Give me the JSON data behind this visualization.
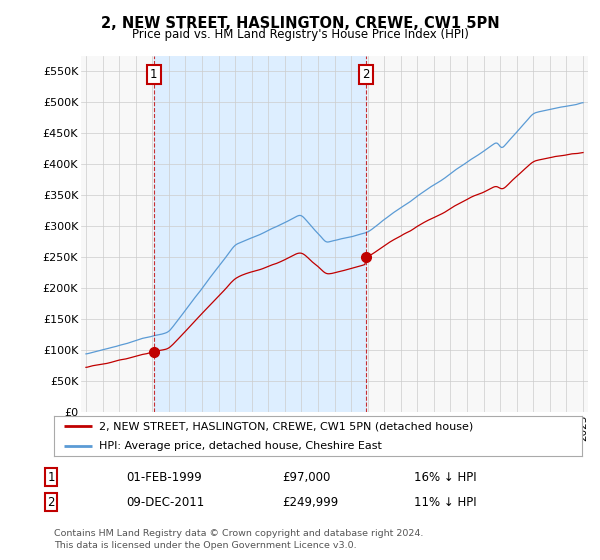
{
  "title": "2, NEW STREET, HASLINGTON, CREWE, CW1 5PN",
  "subtitle": "Price paid vs. HM Land Registry's House Price Index (HPI)",
  "ylim": [
    0,
    575000
  ],
  "yticks": [
    0,
    50000,
    100000,
    150000,
    200000,
    250000,
    300000,
    350000,
    400000,
    450000,
    500000,
    550000
  ],
  "ytick_labels": [
    "£0",
    "£50K",
    "£100K",
    "£150K",
    "£200K",
    "£250K",
    "£300K",
    "£350K",
    "£400K",
    "£450K",
    "£500K",
    "£550K"
  ],
  "hpi_color": "#5b9bd5",
  "price_color": "#c00000",
  "sale1_date": 1999.08,
  "sale1_price": 97000,
  "sale2_date": 2011.92,
  "sale2_price": 249999,
  "shade_color": "#ddeeff",
  "legend_label1": "2, NEW STREET, HASLINGTON, CREWE, CW1 5PN (detached house)",
  "legend_label2": "HPI: Average price, detached house, Cheshire East",
  "table_row1": [
    "1",
    "01-FEB-1999",
    "£97,000",
    "16% ↓ HPI"
  ],
  "table_row2": [
    "2",
    "09-DEC-2011",
    "£249,999",
    "11% ↓ HPI"
  ],
  "footer": "Contains HM Land Registry data © Crown copyright and database right 2024.\nThis data is licensed under the Open Government Licence v3.0.",
  "background_color": "#ffffff",
  "plot_bg_color": "#f8f8f8",
  "grid_color": "#cccccc"
}
